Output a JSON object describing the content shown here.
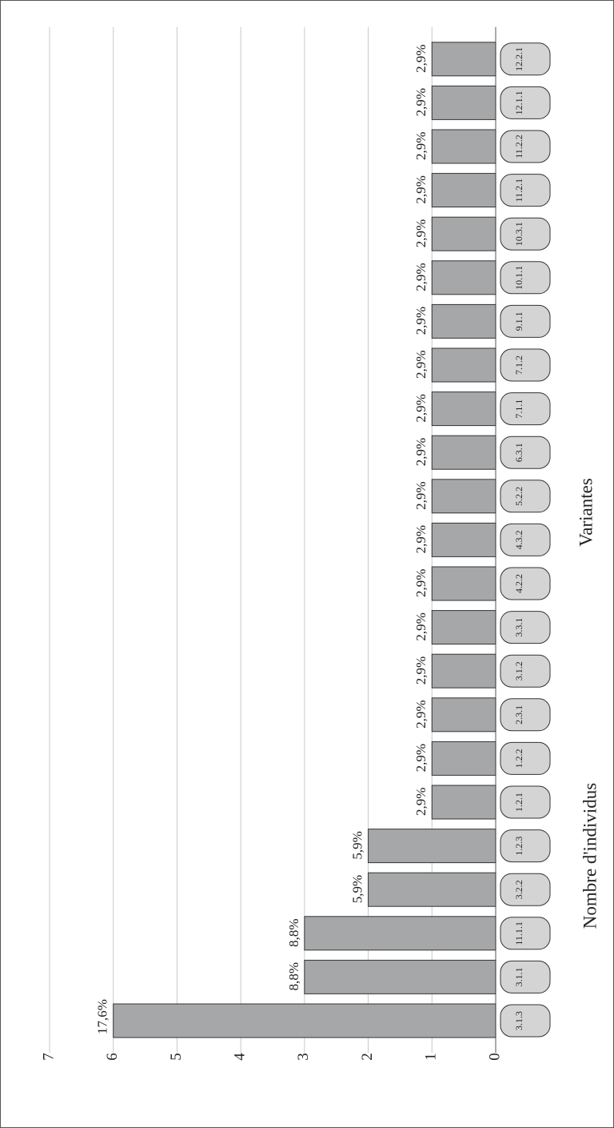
{
  "chart_data": {
    "type": "bar",
    "x_label": "Variantes",
    "y_label": "Nombre d'individus",
    "categories": [
      "3.1.3",
      "3.1.1",
      "11.1.1",
      "3.2.2",
      "1.2.3",
      "1.2.1",
      "1.2.2",
      "2.3.1",
      "3.1.2",
      "3.3.1",
      "4.2.2",
      "4.3.2",
      "5.2.2",
      "6.3.1",
      "7.1.1",
      "7.1.2",
      "9.1.1",
      "10.1.1",
      "10.3.1",
      "11.2.1",
      "11.2.2",
      "12.1.1",
      "12.2.1"
    ],
    "values": [
      6,
      3,
      3,
      2,
      2,
      1,
      1,
      1,
      1,
      1,
      1,
      1,
      1,
      1,
      1,
      1,
      1,
      1,
      1,
      1,
      1,
      1,
      1
    ],
    "share_labels": [
      "17,6%",
      "8,8%",
      "8,8%",
      "5,9%",
      "5,9%",
      "2,9%",
      "2,9%",
      "2,9%",
      "2,9%",
      "2,9%",
      "2,9%",
      "2,9%",
      "2,9%",
      "2,9%",
      "2,9%",
      "2,9%",
      "2,9%",
      "2,9%",
      "2,9%",
      "2,9%",
      "2,9%",
      "2,9%",
      "2,9%"
    ],
    "color": "#a5a7a8",
    "ylim": [
      0,
      7
    ],
    "yticks": [
      0,
      1,
      2,
      3,
      4,
      5,
      6,
      7
    ],
    "grid": true
  }
}
